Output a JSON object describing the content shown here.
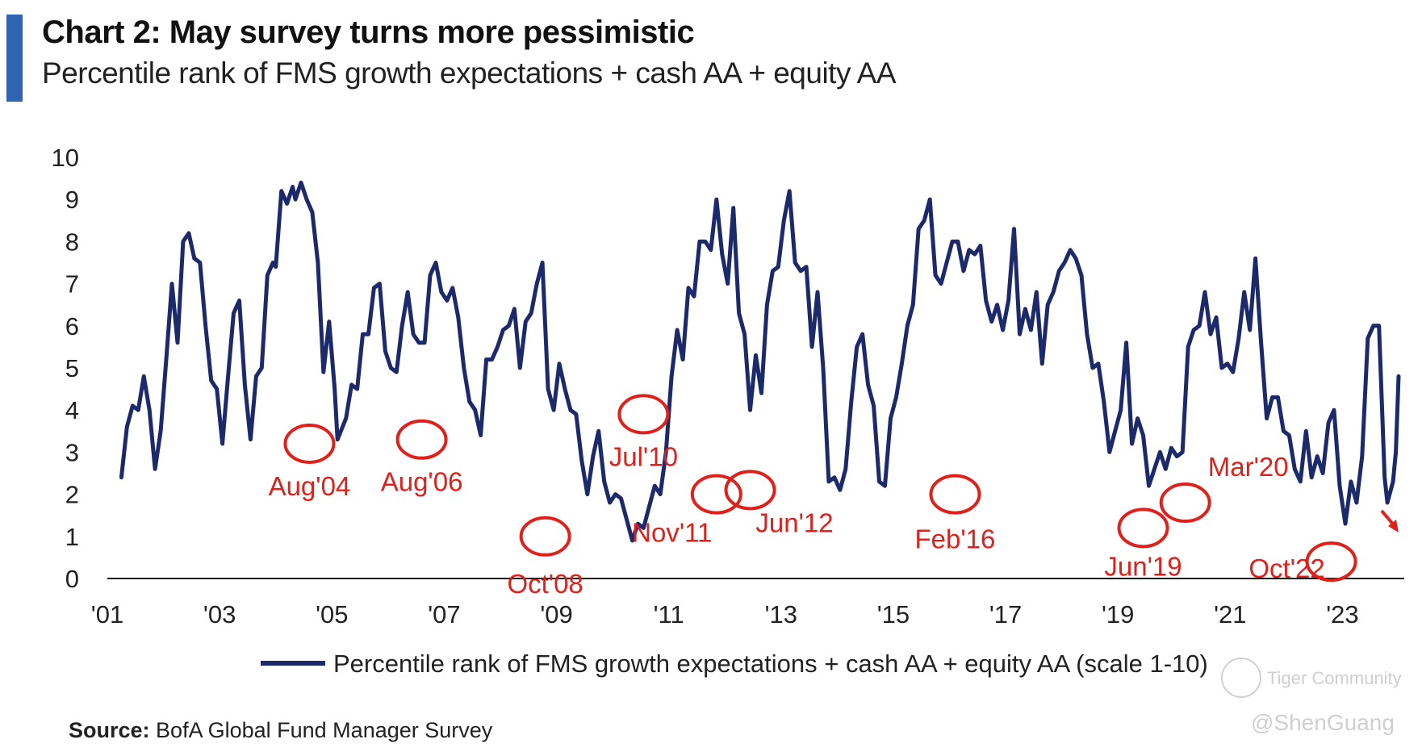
{
  "header": {
    "title": "Chart 2: May survey turns more pessimistic",
    "subtitle": "Percentile rank of FMS growth expectations + cash AA + equity AA"
  },
  "footer": {
    "source_label": "Source:",
    "source_text": "BofA Global Fund Manager Survey"
  },
  "watermarks": [
    "Tiger Community",
    "@ShenGuang"
  ],
  "colors": {
    "line": "#1c2a6b",
    "annotation": "#e0201b",
    "accent_bar": "#2f64b5",
    "axis": "#111111"
  },
  "chart_data": {
    "type": "line",
    "title": "Chart 2: May survey turns more pessimistic",
    "xlabel": "",
    "ylabel": "",
    "ylim": [
      0,
      10
    ],
    "xlim": [
      2001,
      2024.1
    ],
    "yticks": [
      "0",
      "1",
      "2",
      "3",
      "4",
      "5",
      "6",
      "7",
      "8",
      "9",
      "10"
    ],
    "xticks": [
      {
        "value": 2001,
        "label": "'01"
      },
      {
        "value": 2003,
        "label": "'03"
      },
      {
        "value": 2005,
        "label": "'05"
      },
      {
        "value": 2007,
        "label": "'07"
      },
      {
        "value": 2009,
        "label": "'09"
      },
      {
        "value": 2011,
        "label": "'11"
      },
      {
        "value": 2013,
        "label": "'13"
      },
      {
        "value": 2015,
        "label": "'15"
      },
      {
        "value": 2017,
        "label": "'17"
      },
      {
        "value": 2019,
        "label": "'19"
      },
      {
        "value": 2021,
        "label": "'21"
      },
      {
        "value": 2023,
        "label": "'23"
      }
    ],
    "legend": "bottom-center",
    "series": [
      {
        "name": "Percentile rank of FMS growth expectations + cash AA + equity AA (scale 1-10)",
        "points": [
          [
            2001.25,
            2.4
          ],
          [
            2001.35,
            3.6
          ],
          [
            2001.45,
            4.1
          ],
          [
            2001.55,
            4.0
          ],
          [
            2001.65,
            4.8
          ],
          [
            2001.75,
            4.0
          ],
          [
            2001.85,
            2.6
          ],
          [
            2001.95,
            3.5
          ],
          [
            2002.05,
            5.2
          ],
          [
            2002.15,
            7.0
          ],
          [
            2002.25,
            5.6
          ],
          [
            2002.35,
            8.0
          ],
          [
            2002.45,
            8.2
          ],
          [
            2002.55,
            7.6
          ],
          [
            2002.65,
            7.5
          ],
          [
            2002.75,
            6.0
          ],
          [
            2002.85,
            4.7
          ],
          [
            2002.95,
            4.5
          ],
          [
            2003.05,
            3.2
          ],
          [
            2003.15,
            4.8
          ],
          [
            2003.25,
            6.3
          ],
          [
            2003.35,
            6.6
          ],
          [
            2003.45,
            4.6
          ],
          [
            2003.55,
            3.3
          ],
          [
            2003.65,
            4.8
          ],
          [
            2003.75,
            5.0
          ],
          [
            2003.85,
            7.2
          ],
          [
            2003.95,
            7.5
          ],
          [
            2004.0,
            7.4
          ],
          [
            2004.1,
            9.2
          ],
          [
            2004.2,
            8.9
          ],
          [
            2004.3,
            9.3
          ],
          [
            2004.35,
            9.0
          ],
          [
            2004.45,
            9.4
          ],
          [
            2004.55,
            9.0
          ],
          [
            2004.65,
            8.7
          ],
          [
            2004.75,
            7.5
          ],
          [
            2004.85,
            4.9
          ],
          [
            2004.95,
            6.1
          ],
          [
            2005.05,
            4.5
          ],
          [
            2005.1,
            3.3
          ],
          [
            2005.25,
            3.8
          ],
          [
            2005.35,
            4.6
          ],
          [
            2005.45,
            4.5
          ],
          [
            2005.55,
            5.8
          ],
          [
            2005.65,
            5.8
          ],
          [
            2005.75,
            6.9
          ],
          [
            2005.85,
            7.0
          ],
          [
            2005.95,
            5.4
          ],
          [
            2006.05,
            5.0
          ],
          [
            2006.15,
            4.9
          ],
          [
            2006.25,
            6.0
          ],
          [
            2006.35,
            6.8
          ],
          [
            2006.45,
            5.8
          ],
          [
            2006.55,
            5.6
          ],
          [
            2006.65,
            5.6
          ],
          [
            2006.75,
            7.2
          ],
          [
            2006.85,
            7.5
          ],
          [
            2006.95,
            6.8
          ],
          [
            2007.05,
            6.6
          ],
          [
            2007.15,
            6.9
          ],
          [
            2007.25,
            6.2
          ],
          [
            2007.35,
            5.0
          ],
          [
            2007.45,
            4.2
          ],
          [
            2007.55,
            4.0
          ],
          [
            2007.65,
            3.4
          ],
          [
            2007.75,
            5.2
          ],
          [
            2007.85,
            5.2
          ],
          [
            2007.95,
            5.5
          ],
          [
            2008.05,
            5.9
          ],
          [
            2008.15,
            6.0
          ],
          [
            2008.25,
            6.4
          ],
          [
            2008.35,
            5.0
          ],
          [
            2008.45,
            6.1
          ],
          [
            2008.55,
            6.3
          ],
          [
            2008.65,
            7.0
          ],
          [
            2008.75,
            7.5
          ],
          [
            2008.85,
            4.5
          ],
          [
            2008.95,
            4.0
          ],
          [
            2009.05,
            5.1
          ],
          [
            2009.15,
            4.5
          ],
          [
            2009.25,
            4.0
          ],
          [
            2009.35,
            3.9
          ],
          [
            2009.45,
            2.8
          ],
          [
            2009.55,
            2.0
          ],
          [
            2009.65,
            2.9
          ],
          [
            2009.75,
            3.5
          ],
          [
            2009.85,
            2.3
          ],
          [
            2009.95,
            1.8
          ],
          [
            2010.05,
            2.0
          ],
          [
            2010.15,
            1.9
          ],
          [
            2010.25,
            1.4
          ],
          [
            2010.35,
            0.9
          ],
          [
            2010.45,
            1.3
          ],
          [
            2010.55,
            1.2
          ],
          [
            2010.65,
            1.7
          ],
          [
            2010.75,
            2.2
          ],
          [
            2010.85,
            2.0
          ],
          [
            2010.95,
            3.0
          ],
          [
            2011.05,
            4.8
          ],
          [
            2011.15,
            5.9
          ],
          [
            2011.25,
            5.2
          ],
          [
            2011.35,
            6.9
          ],
          [
            2011.45,
            6.7
          ],
          [
            2011.55,
            8.0
          ],
          [
            2011.65,
            8.0
          ],
          [
            2011.75,
            7.8
          ],
          [
            2011.85,
            9.0
          ],
          [
            2011.95,
            7.7
          ],
          [
            2012.05,
            7.0
          ],
          [
            2012.15,
            8.8
          ],
          [
            2012.25,
            6.3
          ],
          [
            2012.35,
            5.8
          ],
          [
            2012.45,
            4.0
          ],
          [
            2012.55,
            5.3
          ],
          [
            2012.65,
            4.4
          ],
          [
            2012.75,
            6.5
          ],
          [
            2012.85,
            7.3
          ],
          [
            2012.95,
            7.4
          ],
          [
            2013.05,
            8.5
          ],
          [
            2013.15,
            9.2
          ],
          [
            2013.25,
            7.5
          ],
          [
            2013.35,
            7.3
          ],
          [
            2013.45,
            7.4
          ],
          [
            2013.55,
            5.5
          ],
          [
            2013.65,
            6.8
          ],
          [
            2013.75,
            5.0
          ],
          [
            2013.85,
            2.3
          ],
          [
            2013.95,
            2.4
          ],
          [
            2014.05,
            2.1
          ],
          [
            2014.15,
            2.6
          ],
          [
            2014.25,
            4.2
          ],
          [
            2014.35,
            5.5
          ],
          [
            2014.45,
            5.8
          ],
          [
            2014.55,
            4.6
          ],
          [
            2014.65,
            4.1
          ],
          [
            2014.75,
            2.3
          ],
          [
            2014.85,
            2.2
          ],
          [
            2014.95,
            3.8
          ],
          [
            2015.05,
            4.3
          ],
          [
            2015.15,
            5.1
          ],
          [
            2015.25,
            6.0
          ],
          [
            2015.35,
            6.5
          ],
          [
            2015.45,
            8.3
          ],
          [
            2015.55,
            8.5
          ],
          [
            2015.65,
            9.0
          ],
          [
            2015.75,
            7.2
          ],
          [
            2015.85,
            7.0
          ],
          [
            2015.95,
            7.5
          ],
          [
            2016.05,
            8.0
          ],
          [
            2016.15,
            8.0
          ],
          [
            2016.25,
            7.3
          ],
          [
            2016.35,
            7.8
          ],
          [
            2016.45,
            7.7
          ],
          [
            2016.55,
            7.9
          ],
          [
            2016.65,
            6.6
          ],
          [
            2016.75,
            6.1
          ],
          [
            2016.85,
            6.5
          ],
          [
            2016.95,
            5.9
          ],
          [
            2017.05,
            6.6
          ],
          [
            2017.15,
            8.3
          ],
          [
            2017.25,
            5.8
          ],
          [
            2017.35,
            6.4
          ],
          [
            2017.45,
            5.9
          ],
          [
            2017.55,
            6.8
          ],
          [
            2017.65,
            5.1
          ],
          [
            2017.75,
            6.5
          ],
          [
            2017.85,
            6.8
          ],
          [
            2017.95,
            7.3
          ],
          [
            2018.05,
            7.5
          ],
          [
            2018.15,
            7.8
          ],
          [
            2018.25,
            7.6
          ],
          [
            2018.35,
            7.2
          ],
          [
            2018.45,
            5.8
          ],
          [
            2018.55,
            5.0
          ],
          [
            2018.65,
            5.1
          ],
          [
            2018.75,
            4.2
          ],
          [
            2018.85,
            3.0
          ],
          [
            2018.95,
            3.5
          ],
          [
            2019.05,
            4.0
          ],
          [
            2019.15,
            5.6
          ],
          [
            2019.25,
            3.2
          ],
          [
            2019.35,
            3.8
          ],
          [
            2019.45,
            3.4
          ],
          [
            2019.55,
            2.2
          ],
          [
            2019.65,
            2.6
          ],
          [
            2019.75,
            3.0
          ],
          [
            2019.85,
            2.6
          ],
          [
            2019.95,
            3.1
          ],
          [
            2020.05,
            2.9
          ],
          [
            2020.15,
            3.0
          ],
          [
            2020.25,
            5.5
          ],
          [
            2020.35,
            5.9
          ],
          [
            2020.45,
            6.0
          ],
          [
            2020.55,
            6.8
          ],
          [
            2020.65,
            5.8
          ],
          [
            2020.75,
            6.2
          ],
          [
            2020.85,
            5.0
          ],
          [
            2020.95,
            5.1
          ],
          [
            2021.05,
            4.9
          ],
          [
            2021.15,
            5.7
          ],
          [
            2021.25,
            6.8
          ],
          [
            2021.35,
            5.9
          ],
          [
            2021.45,
            7.6
          ],
          [
            2021.55,
            5.6
          ],
          [
            2021.65,
            3.8
          ],
          [
            2021.75,
            4.3
          ],
          [
            2021.85,
            4.3
          ],
          [
            2021.95,
            3.5
          ],
          [
            2022.05,
            3.4
          ],
          [
            2022.15,
            2.6
          ],
          [
            2022.25,
            2.3
          ],
          [
            2022.35,
            3.5
          ],
          [
            2022.45,
            2.4
          ],
          [
            2022.55,
            2.9
          ],
          [
            2022.65,
            2.5
          ],
          [
            2022.75,
            3.7
          ],
          [
            2022.85,
            4.0
          ],
          [
            2022.95,
            2.2
          ],
          [
            2023.05,
            1.3
          ],
          [
            2023.15,
            2.3
          ],
          [
            2023.25,
            1.8
          ],
          [
            2023.35,
            2.9
          ],
          [
            2023.45,
            5.7
          ],
          [
            2023.55,
            6.0
          ],
          [
            2023.65,
            6.0
          ],
          [
            2023.75,
            2.4
          ],
          [
            2023.8,
            1.8
          ],
          [
            2023.9,
            2.3
          ],
          [
            2023.95,
            3.0
          ],
          [
            2024.0,
            4.8
          ]
        ]
      }
    ],
    "annotations": [
      {
        "label": "Aug'04",
        "x": 2004.6,
        "y": 3.2
      },
      {
        "label": "Aug'06",
        "x": 2006.6,
        "y": 3.3
      },
      {
        "label": "Oct'08",
        "x": 2008.8,
        "y": 1.0
      },
      {
        "label": "Jul'10",
        "x": 2010.55,
        "y": 3.9
      },
      {
        "label": "Nov'11",
        "x": 2011.85,
        "y": 2.0
      },
      {
        "label": "Jun'12",
        "x": 2012.45,
        "y": 2.1
      },
      {
        "label": "Feb'16",
        "x": 2016.1,
        "y": 2.0
      },
      {
        "label": "Jun'19",
        "x": 2019.45,
        "y": 1.2
      },
      {
        "label": "Mar'20",
        "x": 2020.2,
        "y": 1.8
      },
      {
        "label": "Oct'22",
        "x": 2022.8,
        "y": 0.4
      }
    ]
  }
}
